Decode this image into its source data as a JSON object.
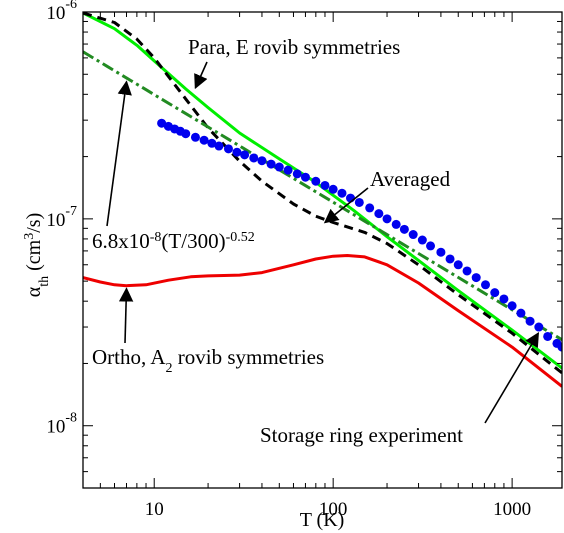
{
  "chart_data": {
    "type": "line",
    "xlabel": "T (K)",
    "ylabel_parts": [
      "α",
      "th",
      " (cm",
      "3",
      "/s)"
    ],
    "xscale": "log",
    "yscale": "log",
    "xlim": [
      4,
      1900
    ],
    "ylim": [
      5e-09,
      1e-06
    ],
    "x_ticks": [
      {
        "value": 10,
        "label": "10"
      },
      {
        "value": 100,
        "label": "100"
      },
      {
        "value": 1000,
        "label": "1000"
      }
    ],
    "y_ticks": [
      {
        "value": 1e-08,
        "base": "10",
        "exp": "-8"
      },
      {
        "value": 1e-07,
        "base": "10",
        "exp": "-7"
      },
      {
        "value": 1e-06,
        "base": "10",
        "exp": "-6"
      }
    ],
    "series": [
      {
        "id": "para",
        "color": "#00ee00",
        "style": "solid",
        "points": [
          [
            4,
            9.9e-07
          ],
          [
            6,
            8.3e-07
          ],
          [
            8,
            6.9e-07
          ],
          [
            10,
            5.8e-07
          ],
          [
            15,
            4.25e-07
          ],
          [
            20,
            3.45e-07
          ],
          [
            30,
            2.6e-07
          ],
          [
            50,
            1.95e-07
          ],
          [
            80,
            1.5e-07
          ],
          [
            100,
            1.3e-07
          ],
          [
            130,
            1.1e-07
          ],
          [
            200,
            8.2e-08
          ],
          [
            300,
            6.3e-08
          ],
          [
            500,
            4.5e-08
          ],
          [
            1000,
            2.9e-08
          ],
          [
            1900,
            1.9e-08
          ]
        ]
      },
      {
        "id": "averaged",
        "color": "#000000",
        "style": "dashed",
        "points": [
          [
            4,
            9.9e-07
          ],
          [
            6,
            8.9e-07
          ],
          [
            8,
            7.4e-07
          ],
          [
            10,
            6e-07
          ],
          [
            15,
            3.8e-07
          ],
          [
            20,
            2.75e-07
          ],
          [
            30,
            1.9e-07
          ],
          [
            40,
            1.52e-07
          ],
          [
            60,
            1.18e-07
          ],
          [
            80,
            1.03e-07
          ],
          [
            100,
            9.6e-08
          ],
          [
            150,
            8.6e-08
          ],
          [
            200,
            7.6e-08
          ],
          [
            300,
            6e-08
          ],
          [
            500,
            4.3e-08
          ],
          [
            1000,
            2.8e-08
          ],
          [
            1900,
            1.8e-08
          ]
        ]
      },
      {
        "id": "ortho",
        "color": "#ee0000",
        "style": "solid",
        "points": [
          [
            4,
            5.2e-08
          ],
          [
            5,
            4.95e-08
          ],
          [
            6,
            4.8e-08
          ],
          [
            7,
            4.75e-08
          ],
          [
            9,
            4.8e-08
          ],
          [
            12,
            5.05e-08
          ],
          [
            16,
            5.25e-08
          ],
          [
            20,
            5.3e-08
          ],
          [
            30,
            5.35e-08
          ],
          [
            40,
            5.5e-08
          ],
          [
            60,
            6e-08
          ],
          [
            80,
            6.4e-08
          ],
          [
            100,
            6.6e-08
          ],
          [
            120,
            6.65e-08
          ],
          [
            150,
            6.55e-08
          ],
          [
            200,
            6e-08
          ],
          [
            300,
            4.9e-08
          ],
          [
            500,
            3.6e-08
          ],
          [
            1000,
            2.4e-08
          ],
          [
            1900,
            1.55e-08
          ]
        ]
      },
      {
        "id": "fit",
        "color": "#228b22",
        "style": "dashdot",
        "formula": "6.8e-8*(T/300)^-0.52",
        "x_range": [
          4,
          1900
        ]
      },
      {
        "id": "storage_ring",
        "color": "#0000ee",
        "style": "markers",
        "points": [
          [
            11,
            2.9e-07
          ],
          [
            12,
            2.8e-07
          ],
          [
            13,
            2.72e-07
          ],
          [
            14,
            2.65e-07
          ],
          [
            15,
            2.58e-07
          ],
          [
            17,
            2.48e-07
          ],
          [
            19,
            2.4e-07
          ],
          [
            21,
            2.32e-07
          ],
          [
            23,
            2.25e-07
          ],
          [
            26,
            2.18e-07
          ],
          [
            29,
            2.1e-07
          ],
          [
            32,
            2.04e-07
          ],
          [
            36,
            1.97e-07
          ],
          [
            40,
            1.91e-07
          ],
          [
            45,
            1.84e-07
          ],
          [
            50,
            1.78e-07
          ],
          [
            56,
            1.72e-07
          ],
          [
            63,
            1.65e-07
          ],
          [
            70,
            1.59e-07
          ],
          [
            80,
            1.52e-07
          ],
          [
            90,
            1.45e-07
          ],
          [
            100,
            1.39e-07
          ],
          [
            112,
            1.33e-07
          ],
          [
            125,
            1.26e-07
          ],
          [
            140,
            1.2e-07
          ],
          [
            160,
            1.13e-07
          ],
          [
            180,
            1.06e-07
          ],
          [
            200,
            1e-07
          ],
          [
            225,
            9.4e-08
          ],
          [
            250,
            8.9e-08
          ],
          [
            280,
            8.4e-08
          ],
          [
            315,
            7.9e-08
          ],
          [
            350,
            7.4e-08
          ],
          [
            400,
            6.9e-08
          ],
          [
            450,
            6.4e-08
          ],
          [
            500,
            6e-08
          ],
          [
            560,
            5.6e-08
          ],
          [
            630,
            5.2e-08
          ],
          [
            710,
            4.8e-08
          ],
          [
            800,
            4.4e-08
          ],
          [
            900,
            4.1e-08
          ],
          [
            1000,
            3.8e-08
          ],
          [
            1120,
            3.5e-08
          ],
          [
            1260,
            3.2e-08
          ],
          [
            1410,
            3e-08
          ],
          [
            1580,
            2.7e-08
          ],
          [
            1780,
            2.5e-08
          ],
          [
            1900,
            2.4e-08
          ]
        ]
      }
    ],
    "annotations": [
      {
        "id": "para",
        "parts": [
          {
            "t": "Para, E rovib symmetries"
          }
        ],
        "arrow_to": [
          17,
          4.3e-07
        ]
      },
      {
        "id": "averaged",
        "parts": [
          {
            "t": "Averaged"
          }
        ],
        "arrow_to": [
          90,
          9.6e-08
        ]
      },
      {
        "id": "fit",
        "parts": [
          {
            "t": "6.8x10"
          },
          {
            "t": "-8",
            "sup": true
          },
          {
            "t": "(T/300)"
          },
          {
            "t": "-0.52",
            "sup": true
          }
        ],
        "arrow_to": [
          7,
          4.6e-07
        ]
      },
      {
        "id": "ortho",
        "parts": [
          {
            "t": "Ortho, A"
          },
          {
            "t": "2",
            "sub": true
          },
          {
            "t": " rovib symmetries"
          }
        ],
        "arrow_to": [
          7,
          4.6e-08
        ]
      },
      {
        "id": "storage",
        "parts": [
          {
            "t": "Storage ring experiment"
          }
        ],
        "arrow_to": [
          1400,
          2.8e-08
        ]
      }
    ]
  }
}
